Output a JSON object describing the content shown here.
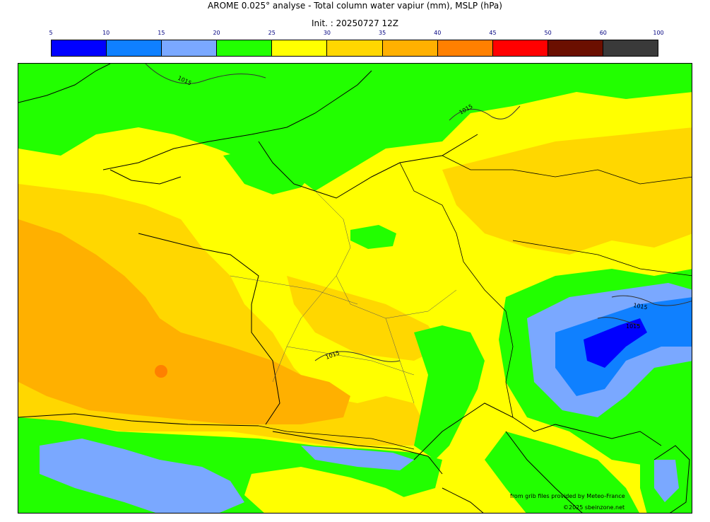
{
  "title": "AROME 0.025° analyse - Total column water vapiur (mm), MSLP (hPa)",
  "subtitle": "Init. : 20250727 12Z",
  "legend": {
    "ticks": [
      "5",
      "10",
      "15",
      "20",
      "25",
      "30",
      "35",
      "40",
      "45",
      "50",
      "60",
      "100"
    ],
    "colors": [
      "#0000ff",
      "#0f80ff",
      "#7aa8ff",
      "#22ff00",
      "#ffff00",
      "#ffd700",
      "#ffb000",
      "#ff8000",
      "#ff0000",
      "#6b0f00",
      "#3a3a3a"
    ]
  },
  "map": {
    "background_color": "#ffff00",
    "isobar_label": "1015"
  },
  "credits": {
    "line1": "from grib files provided by Meteo-France",
    "line2": "©2025 sbeinzone.net"
  }
}
